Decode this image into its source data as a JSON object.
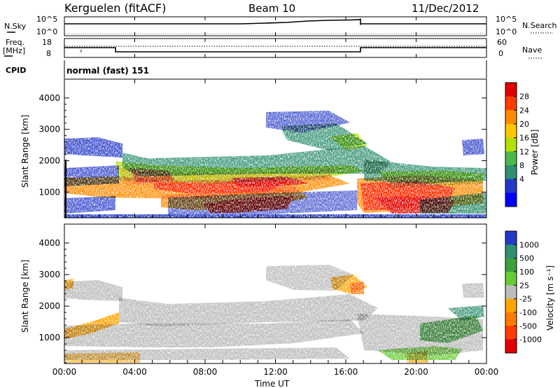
{
  "header": {
    "station": "Kerguelen (fitACF)",
    "beam": "Beam 10",
    "date": "11/Dec/2012"
  },
  "nsky_panel": {
    "left_label": "N.Sky",
    "left_ticks": [
      "10^5",
      "10^0"
    ],
    "right_label": "N.Search",
    "right_ticks": [
      "10^5",
      "10^0"
    ]
  },
  "freq_panel": {
    "left_label_1": "Freq.",
    "left_label_2": "[MHz]",
    "left_ticks": [
      "18",
      "8"
    ],
    "right_label": "Nave",
    "right_ticks": [
      "60",
      "0"
    ]
  },
  "cpid_panel": {
    "label": "CPID",
    "value": "normal (fast) 151"
  },
  "chart_data": [
    {
      "type": "heatmap",
      "title": "",
      "ylabel": "Slant Range [km]",
      "xlabel": "",
      "ylim": [
        180,
        4600
      ],
      "y_ticks": [
        "1000",
        "2000",
        "3000",
        "4000"
      ],
      "colorbar_label": "Power [dB]",
      "colorbar_ticks": [
        "28",
        "24",
        "20",
        "16",
        "12",
        "8",
        "4"
      ],
      "colorbar_colors": [
        "#e00000",
        "#ff3b00",
        "#ff8c00",
        "#ffc800",
        "#b4e000",
        "#4cb84c",
        "#2f8f6f",
        "#2438c8",
        "#0000ff"
      ]
    },
    {
      "type": "heatmap",
      "title": "",
      "ylabel": "Slant Range [km]",
      "xlabel": "Time UT",
      "ylim": [
        180,
        4600
      ],
      "y_ticks": [
        "1000",
        "2000",
        "3000",
        "4000"
      ],
      "x_ticks": [
        "00:00",
        "04:00",
        "08:00",
        "12:00",
        "16:00",
        "20:00",
        "00:00"
      ],
      "colorbar_label": "Velocity [m s⁻¹]",
      "colorbar_ticks": [
        "1000",
        "500",
        "100",
        "25",
        "-25",
        "-100",
        "-500",
        "-1000"
      ],
      "colorbar_colors": [
        "#2438c8",
        "#2f8f6f",
        "#3ca03c",
        "#66cc33",
        "#bdbdbd",
        "#ffa500",
        "#ff7a00",
        "#ff3b00",
        "#e00000"
      ]
    }
  ]
}
